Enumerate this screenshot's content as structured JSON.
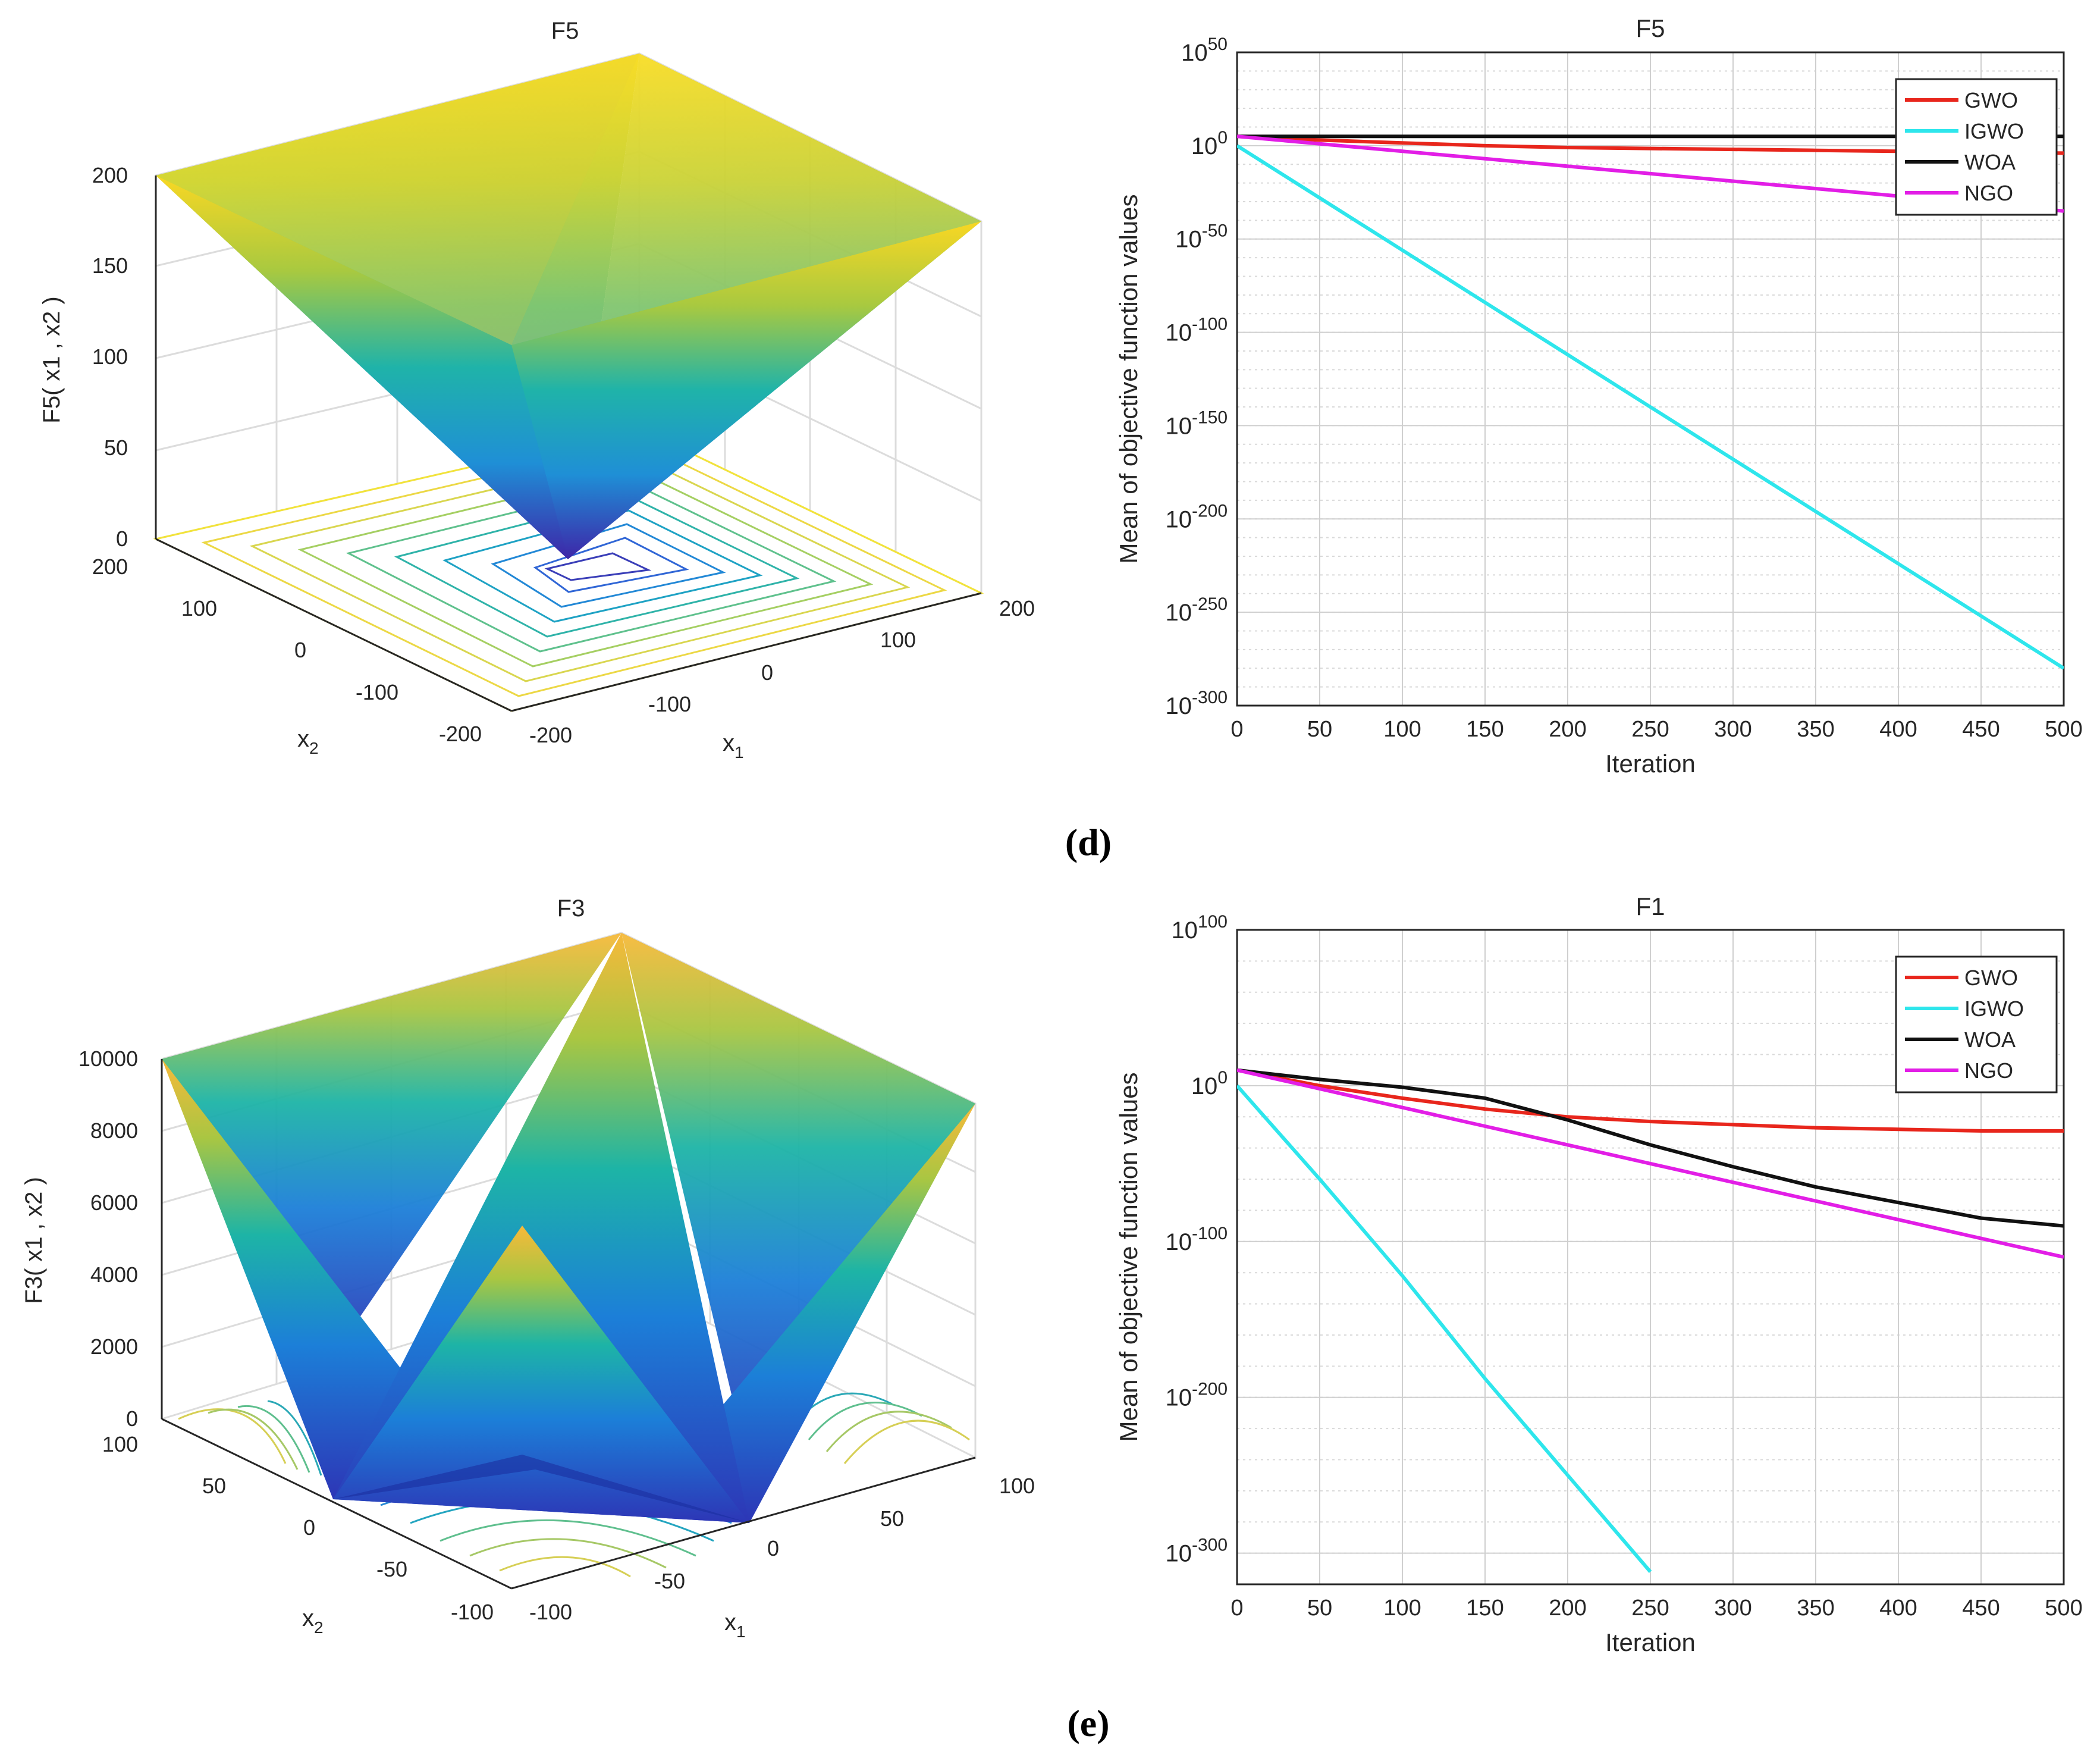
{
  "panels": {
    "d": {
      "caption_pre": "(",
      "caption_letter": "d",
      "caption_post": ")",
      "surface": {
        "title": "F5",
        "zlabel": "F5( x",
        "zlabel_full": "F5( x1 , x2 )",
        "xlabel": "x",
        "xlabel_sub": "1",
        "ylabel": "x",
        "ylabel_sub": "2",
        "z_ticks": [
          "0",
          "50",
          "100",
          "150",
          "200"
        ],
        "x1_ticks": [
          "-200",
          "-100",
          "0",
          "100",
          "200"
        ],
        "x2_ticks": [
          "-200",
          "-100",
          "0",
          "100",
          "200"
        ]
      }
    },
    "e": {
      "caption_pre": "(",
      "caption_letter": "e",
      "caption_post": ")",
      "surface": {
        "title": "F3",
        "zlabel_full": "F3( x1 , x2 )",
        "xlabel": "x",
        "xlabel_sub": "1",
        "ylabel": "x",
        "ylabel_sub": "2",
        "z_ticks": [
          "0",
          "2000",
          "4000",
          "6000",
          "8000",
          "10000"
        ],
        "x1_ticks": [
          "-100",
          "-50",
          "0",
          "50",
          "100"
        ],
        "x2_ticks": [
          "-100",
          "-50",
          "0",
          "50",
          "100"
        ]
      }
    }
  },
  "colors": {
    "GWO": "#e8261c",
    "IGWO": "#2ee6ec",
    "WOA": "#111111",
    "NGO": "#e21ee6",
    "grid": "#d9d9d9",
    "axis": "#262626"
  },
  "chart_data": [
    {
      "id": "d-conv",
      "type": "line",
      "title": "F5",
      "xlabel": "Iteration",
      "ylabel": "Mean of objective function values",
      "yscale": "log10",
      "xlim": [
        0,
        500
      ],
      "ylim_exp": [
        -300,
        50
      ],
      "x_ticks": [
        "0",
        "50",
        "100",
        "150",
        "200",
        "250",
        "300",
        "350",
        "400",
        "450",
        "500"
      ],
      "y_tick_base": "10",
      "y_tick_exps": [
        "-300",
        "-250",
        "-200",
        "-150",
        "-100",
        "-50",
        "0",
        "50"
      ],
      "legend": [
        "GWO",
        "IGWO",
        "WOA",
        "NGO"
      ],
      "legend_position": "top-right",
      "grid": true,
      "x": [
        0,
        50,
        100,
        150,
        200,
        250,
        300,
        350,
        400,
        450,
        500
      ],
      "series": [
        {
          "name": "GWO",
          "log10_values": [
            5,
            3,
            1.5,
            0,
            -1,
            -1.5,
            -2,
            -2.5,
            -3,
            -3.5,
            -4
          ]
        },
        {
          "name": "IGWO",
          "log10_values": [
            0,
            -28,
            -56,
            -84,
            -112,
            -140,
            -168,
            -196,
            -224,
            -252,
            -280
          ]
        },
        {
          "name": "WOA",
          "log10_values": [
            5,
            5,
            5,
            5,
            5,
            5,
            5,
            5,
            5,
            5,
            5
          ]
        },
        {
          "name": "NGO",
          "log10_values": [
            5,
            1,
            -3,
            -7,
            -11,
            -15,
            -19,
            -23,
            -27,
            -31,
            -35
          ]
        }
      ]
    },
    {
      "id": "e-conv",
      "type": "line",
      "title": "F1",
      "xlabel": "Iteration",
      "ylabel": "Mean of objective function values",
      "yscale": "log10",
      "xlim": [
        0,
        500
      ],
      "ylim_exp": [
        -320,
        100
      ],
      "x_ticks": [
        "0",
        "50",
        "100",
        "150",
        "200",
        "250",
        "300",
        "350",
        "400",
        "450",
        "500"
      ],
      "y_tick_base": "10",
      "y_tick_exps": [
        "-300",
        "-200",
        "-100",
        "0",
        "100"
      ],
      "legend": [
        "GWO",
        "IGWO",
        "WOA",
        "NGO"
      ],
      "legend_position": "top-right",
      "grid": true,
      "x": [
        0,
        50,
        100,
        150,
        200,
        250,
        300,
        350,
        400,
        450,
        500
      ],
      "series": [
        {
          "name": "GWO",
          "log10_values": [
            10,
            0,
            -8,
            -15,
            -20,
            -23,
            -25,
            -27,
            -28,
            -29,
            -29
          ]
        },
        {
          "name": "IGWO",
          "log10_values": [
            0,
            -60,
            -122,
            -188,
            -250,
            -312
          ]
        },
        {
          "name": "WOA",
          "log10_values": [
            10,
            4,
            -1,
            -8,
            -22,
            -38,
            -52,
            -65,
            -75,
            -85,
            -90
          ]
        },
        {
          "name": "NGO",
          "log10_values": [
            10,
            -2,
            -14,
            -26,
            -38,
            -50,
            -62,
            -74,
            -86,
            -98,
            -110
          ]
        }
      ]
    }
  ]
}
